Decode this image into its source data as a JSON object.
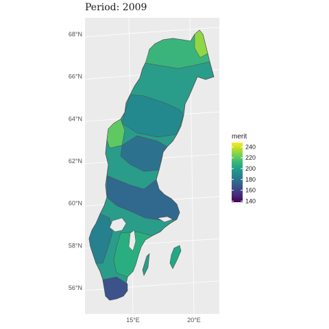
{
  "title": "Period: 2009",
  "map": {
    "region": "Sweden municipalities",
    "background_color": "#ebebeb",
    "grid_color": "#ffffff",
    "border_color": "#4a4a4a",
    "lat_labels": [
      {
        "value": 68,
        "label": "68°N"
      },
      {
        "value": 66,
        "label": "66°N"
      },
      {
        "value": 64,
        "label": "64°N"
      },
      {
        "value": 62,
        "label": "62°N"
      },
      {
        "value": 60,
        "label": "60°N"
      },
      {
        "value": 58,
        "label": "58°N"
      },
      {
        "value": 56,
        "label": "56°N"
      }
    ],
    "lon_labels": [
      {
        "value": 15,
        "label": "15°E"
      },
      {
        "value": 20,
        "label": "20°E"
      }
    ]
  },
  "legend": {
    "title": "merit",
    "ticks": [
      {
        "value": 240,
        "label": "240"
      },
      {
        "value": 220,
        "label": "220"
      },
      {
        "value": 200,
        "label": "200"
      },
      {
        "value": 180,
        "label": "180"
      },
      {
        "value": 160,
        "label": "160"
      },
      {
        "value": 140,
        "label": "140"
      }
    ],
    "range": [
      138,
      248
    ],
    "colors": [
      "#440154",
      "#482878",
      "#3e4989",
      "#31688e",
      "#26828e",
      "#1f9e89",
      "#35b779",
      "#6ece58",
      "#b5de2b",
      "#fde725"
    ]
  }
}
